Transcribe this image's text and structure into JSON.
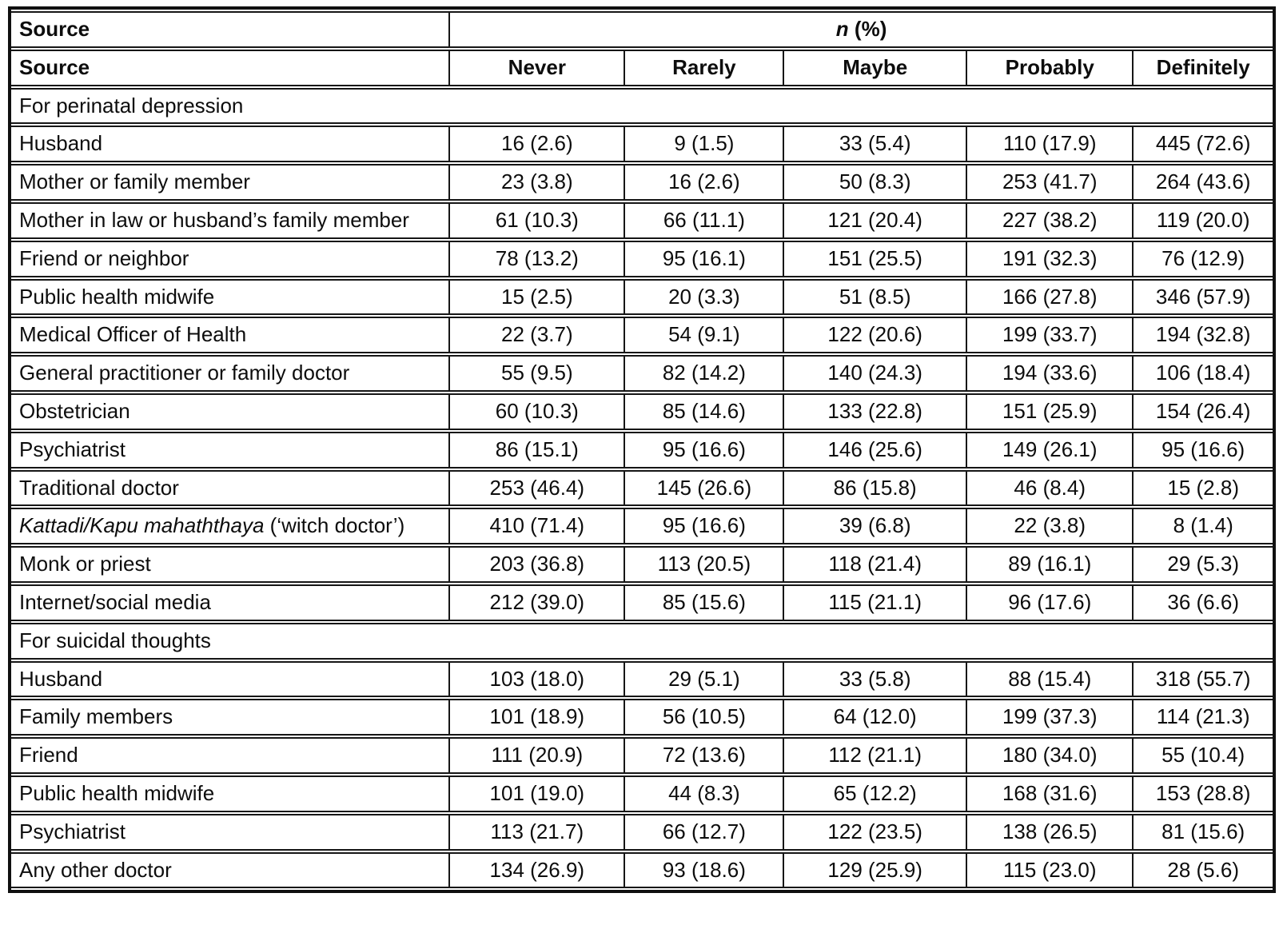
{
  "colors": {
    "text": "#0d0d0d",
    "border": "#161616",
    "background": "#ffffff"
  },
  "header": {
    "source_row1": "Source",
    "source_row2": "Source",
    "n_italic": "n",
    "n_rest": " (%)",
    "columns": [
      "Never",
      "Rarely",
      "Maybe",
      "Probably",
      "Definitely"
    ]
  },
  "sections": [
    {
      "title": "For perinatal depression",
      "rows": [
        {
          "label": "Husband",
          "values": [
            "16 (2.6)",
            "9 (1.5)",
            "33 (5.4)",
            "110 (17.9)",
            "445 (72.6)"
          ]
        },
        {
          "label": "Mother or family member",
          "values": [
            "23 (3.8)",
            "16 (2.6)",
            "50 (8.3)",
            "253 (41.7)",
            "264 (43.6)"
          ]
        },
        {
          "label": "Mother in law or husband’s family member",
          "values": [
            "61 (10.3)",
            "66 (11.1)",
            "121 (20.4)",
            "227 (38.2)",
            "119 (20.0)"
          ]
        },
        {
          "label": "Friend or neighbor",
          "values": [
            "78 (13.2)",
            "95 (16.1)",
            "151 (25.5)",
            "191 (32.3)",
            "76 (12.9)"
          ]
        },
        {
          "label": "Public health midwife",
          "values": [
            "15 (2.5)",
            "20 (3.3)",
            "51 (8.5)",
            "166 (27.8)",
            "346 (57.9)"
          ]
        },
        {
          "label": "Medical Officer of Health",
          "values": [
            "22 (3.7)",
            "54 (9.1)",
            "122 (20.6)",
            "199 (33.7)",
            "194 (32.8)"
          ]
        },
        {
          "label": "General practitioner or family doctor",
          "values": [
            "55 (9.5)",
            "82 (14.2)",
            "140 (24.3)",
            "194 (33.6)",
            "106 (18.4)"
          ]
        },
        {
          "label": "Obstetrician",
          "values": [
            "60 (10.3)",
            "85 (14.6)",
            "133 (22.8)",
            "151 (25.9)",
            "154 (26.4)"
          ]
        },
        {
          "label": "Psychiatrist",
          "values": [
            "86 (15.1)",
            "95 (16.6)",
            "146 (25.6)",
            "149 (26.1)",
            "95 (16.6)"
          ]
        },
        {
          "label": "Traditional doctor",
          "values": [
            "253 (46.4)",
            "145 (26.6)",
            "86 (15.8)",
            "46 (8.4)",
            "15 (2.8)"
          ]
        },
        {
          "label": "Kattadi/Kapu mahaththaya",
          "label_italic": true,
          "label_suffix": "(‘witch doctor’)",
          "values": [
            "410 (71.4)",
            "95 (16.6)",
            "39 (6.8)",
            "22 (3.8)",
            "8 (1.4)"
          ]
        },
        {
          "label": "Monk or priest",
          "values": [
            "203 (36.8)",
            "113 (20.5)",
            "118 (21.4)",
            "89 (16.1)",
            "29 (5.3)"
          ]
        },
        {
          "label": "Internet/social media",
          "values": [
            "212 (39.0)",
            "85 (15.6)",
            "115 (21.1)",
            "96 (17.6)",
            "36 (6.6)"
          ]
        }
      ]
    },
    {
      "title": "For suicidal thoughts",
      "rows": [
        {
          "label": "Husband",
          "values": [
            "103 (18.0)",
            "29 (5.1)",
            "33 (5.8)",
            "88 (15.4)",
            "318 (55.7)"
          ]
        },
        {
          "label": "Family members",
          "values": [
            "101 (18.9)",
            "56 (10.5)",
            "64 (12.0)",
            "199 (37.3)",
            "114 (21.3)"
          ]
        },
        {
          "label": "Friend",
          "values": [
            "111 (20.9)",
            "72 (13.6)",
            "112 (21.1)",
            "180 (34.0)",
            "55 (10.4)"
          ]
        },
        {
          "label": "Public health midwife",
          "values": [
            "101 (19.0)",
            "44 (8.3)",
            "65 (12.2)",
            "168 (31.6)",
            "153 (28.8)"
          ]
        },
        {
          "label": "Psychiatrist",
          "values": [
            "113 (21.7)",
            "66 (12.7)",
            "122 (23.5)",
            "138 (26.5)",
            "81 (15.6)"
          ]
        },
        {
          "label": "Any other doctor",
          "values": [
            "134 (26.9)",
            "93 (18.6)",
            "129 (25.9)",
            "115 (23.0)",
            "28 (5.6)"
          ]
        }
      ]
    }
  ]
}
